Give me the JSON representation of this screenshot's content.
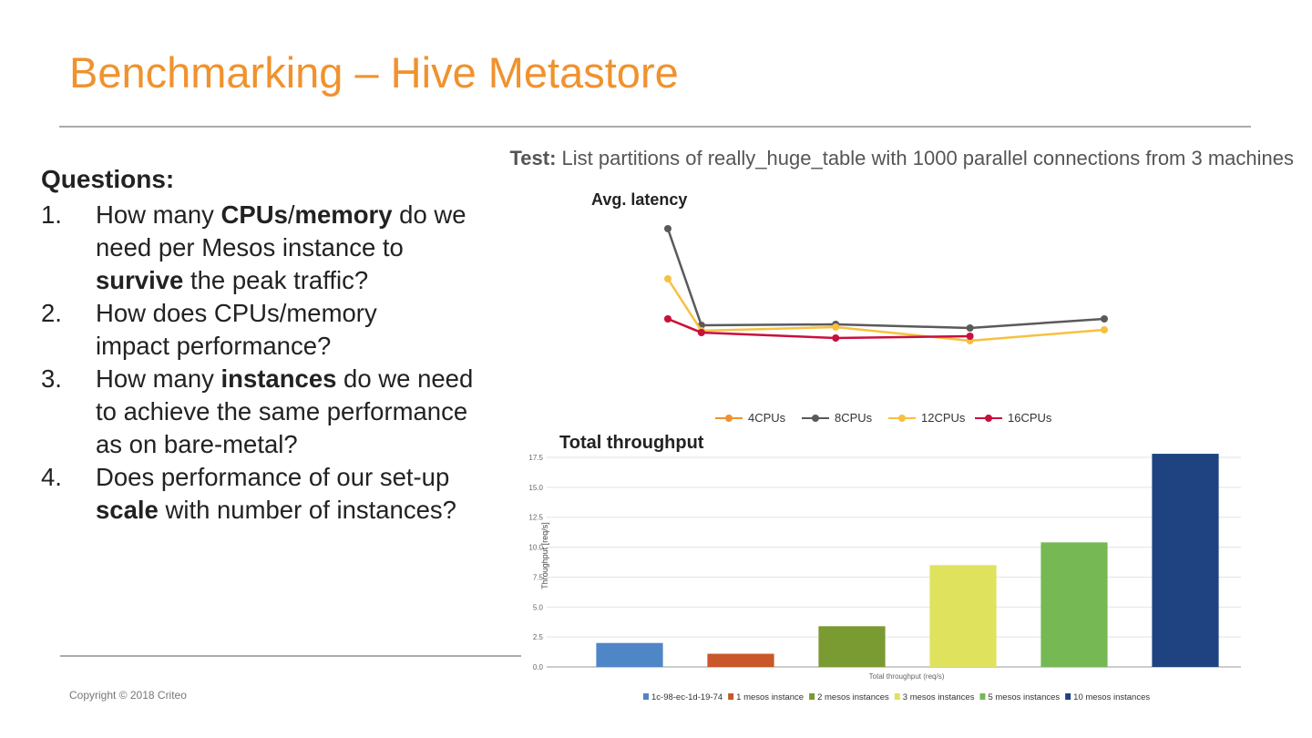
{
  "header": {
    "title": "Benchmarking – Hive Metastore"
  },
  "test": {
    "label": "Test:",
    "text": "List partitions of really_huge_table with 1000 parallel connections from 3 machines"
  },
  "questions": {
    "heading": "Questions:",
    "items": [
      {
        "number": "1.",
        "parts": [
          "How many ",
          "CPUs",
          "/",
          "memory",
          " do we need per Mesos instance to ",
          "survive",
          " the peak traffic?"
        ]
      },
      {
        "number": "2.",
        "parts": [
          "How does CPUs/memory impact performance?"
        ]
      },
      {
        "number": "3.",
        "parts": [
          "How many ",
          "instances",
          " do we need to achieve the same performance as on bare-metal?"
        ]
      },
      {
        "number": "4.",
        "parts": [
          "Does performance of our set-up ",
          "scale",
          " with number of instances?"
        ]
      }
    ]
  },
  "footer": {
    "copyright": "Copyright © 2018 Criteo"
  },
  "chart_data": [
    {
      "type": "line",
      "title": "Avg. latency",
      "x": [
        0,
        1,
        5,
        9,
        13
      ],
      "xlim": [
        0,
        13
      ],
      "ylim": [
        0,
        10
      ],
      "series": [
        {
          "name": "4CPUs",
          "color": "#f0922e",
          "values": [
            4.5,
            3.75,
            null,
            null,
            null
          ]
        },
        {
          "name": "8CPUs",
          "color": "#5a5a5a",
          "values": [
            9.45,
            4.15,
            4.2,
            4.0,
            4.5
          ]
        },
        {
          "name": "12CPUs",
          "color": "#f7c040",
          "values": [
            6.7,
            3.85,
            4.05,
            3.3,
            3.9
          ]
        },
        {
          "name": "16CPUs",
          "color": "#c8103e",
          "values": [
            4.5,
            3.75,
            3.45,
            3.55,
            null
          ]
        }
      ]
    },
    {
      "type": "bar",
      "title": "Total throughput",
      "x_label": "Total throughput (req/s)",
      "y_label": "Throughput [req/s]",
      "ylim": [
        0,
        17.5
      ],
      "yticks": [
        {
          "value": 0,
          "label": "0.0"
        },
        2.5,
        {
          "value": 5,
          "label": "5.0"
        },
        7.5,
        {
          "value": 10,
          "label": "10.0"
        },
        12.5,
        {
          "value": 15,
          "label": "15.0"
        },
        17.5
      ],
      "grid": true,
      "series": [
        {
          "name": "1c-98-ec-1d-19-74",
          "color": "#4f86c6",
          "values": [
            2.0
          ]
        },
        {
          "name": "1 mesos instance",
          "color": "#c9572a",
          "values": [
            1.1
          ]
        },
        {
          "name": "2 mesos instances",
          "color": "#7a9a32",
          "values": [
            3.4
          ]
        },
        {
          "name": "3 mesos instances",
          "color": "#dfe25c",
          "values": [
            8.5
          ]
        },
        {
          "name": "5 mesos instances",
          "color": "#76b854",
          "values": [
            10.4
          ]
        },
        {
          "name": "10 mesos instances",
          "color": "#1e4380",
          "values": [
            17.8
          ]
        }
      ]
    }
  ]
}
